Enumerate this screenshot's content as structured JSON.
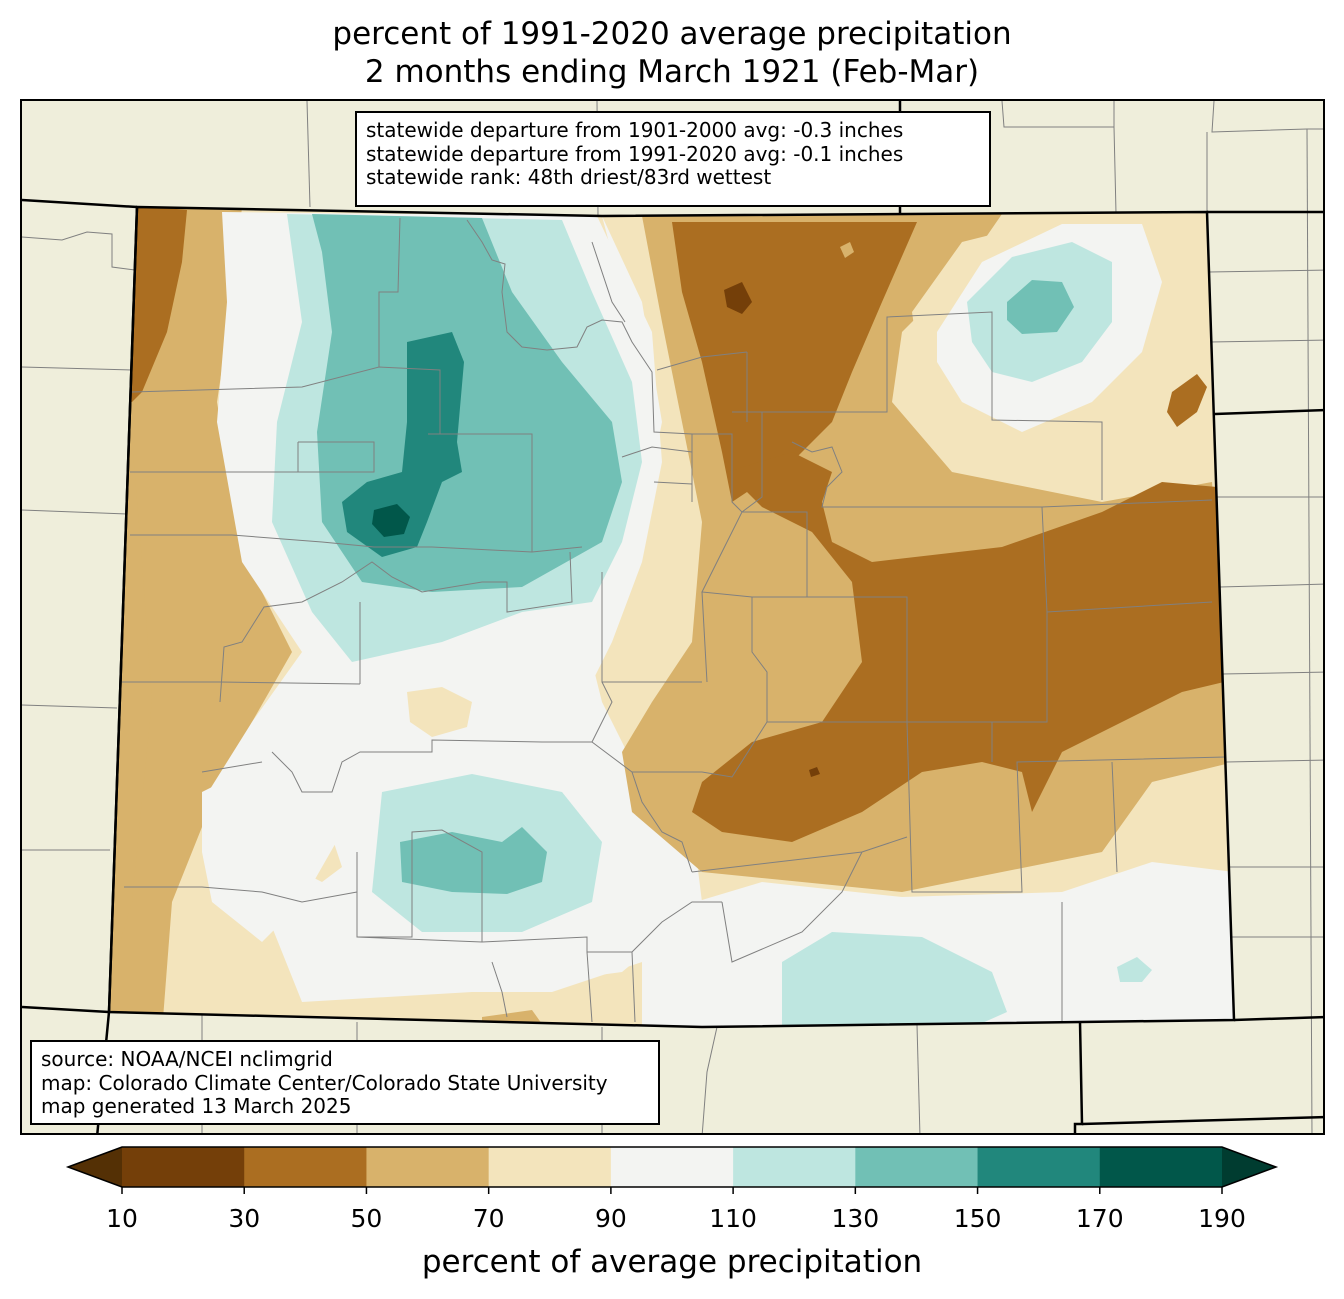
{
  "title": {
    "line1": "percent of 1991-2020 average precipitation",
    "line2": "2 months ending March 1921 (Feb-Mar)"
  },
  "stats_box": {
    "line1": "statewide departure from 1901-2000 avg: -0.3 inches",
    "line2": "statewide departure from 1991-2020 avg: -0.1 inches",
    "line3": "statewide rank: 48th driest/83rd wettest"
  },
  "source_box": {
    "line1": "source: NOAA/NCEI nclimgrid",
    "line2": "map: Colorado Climate Center/Colorado State University",
    "line3": "map generated 13 March 2025"
  },
  "colorbar": {
    "label": "percent of average precipitation",
    "ticks": [
      "10",
      "30",
      "50",
      "70",
      "90",
      "110",
      "130",
      "150",
      "170",
      "190"
    ],
    "bins": [
      {
        "range": "<10",
        "color": "#543005"
      },
      {
        "range": "10-30",
        "color": "#743f09"
      },
      {
        "range": "30-50",
        "color": "#ab6e21"
      },
      {
        "range": "50-70",
        "color": "#d8b26b"
      },
      {
        "range": "70-90",
        "color": "#f3e4bc"
      },
      {
        "range": "90-110",
        "color": "#f3f4f2"
      },
      {
        "range": "110-130",
        "color": "#bee6e0"
      },
      {
        "range": "130-150",
        "color": "#71c0b5"
      },
      {
        "range": "150-170",
        "color": "#21877c"
      },
      {
        "range": "170-190",
        "color": "#01574a"
      },
      {
        "range": ">190",
        "color": "#003c30"
      }
    ]
  },
  "colors": {
    "land_background": "#efeedb",
    "county_lines": "#808080",
    "state_border": "#000000"
  }
}
